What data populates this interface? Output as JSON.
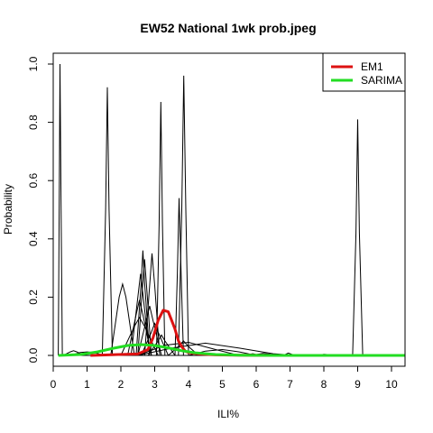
{
  "chart_data": {
    "type": "line",
    "title": "EW52 National 1wk prob.jpeg",
    "xlabel": "ILI%",
    "ylabel": "Probability",
    "xlim": [
      0,
      10.4
    ],
    "ylim": [
      0,
      1.0
    ],
    "x_ticks": [
      0,
      1,
      2,
      3,
      4,
      5,
      6,
      7,
      8,
      9,
      10
    ],
    "x_tick_labels": [
      "0",
      "1",
      "2",
      "3",
      "4",
      "5",
      "6",
      "7",
      "8",
      "9",
      "10"
    ],
    "y_ticks": [
      0,
      0.2,
      0.4,
      0.6,
      0.8,
      1.0
    ],
    "y_tick_labels": [
      "0.0",
      "0.2",
      "0.4",
      "0.6",
      "0.8",
      "1.0"
    ],
    "legend": {
      "position": "top-right",
      "entries": [
        {
          "name": "EM1",
          "color": "#dd1111"
        },
        {
          "name": "SARIMA",
          "color": "#22dd22"
        }
      ]
    },
    "highlight_series": [
      {
        "name": "EM1",
        "color": "#dd1111",
        "x": [
          1.1,
          2.5,
          2.8,
          2.95,
          3.1,
          3.25,
          3.4,
          3.5,
          3.6,
          3.7,
          3.8,
          3.9,
          4.0,
          4.3,
          4.8,
          5.5,
          6.5,
          10.4
        ],
        "y": [
          0.0,
          0.005,
          0.02,
          0.06,
          0.12,
          0.155,
          0.15,
          0.12,
          0.09,
          0.05,
          0.03,
          0.015,
          0.01,
          0.005,
          0.002,
          0.001,
          0.0,
          0.0
        ]
      },
      {
        "name": "SARIMA",
        "color": "#22dd22",
        "x": [
          0.15,
          0.8,
          1.3,
          1.8,
          2.2,
          2.6,
          3.0,
          3.4,
          3.8,
          4.2,
          4.8,
          5.5,
          6.5,
          10.4
        ],
        "y": [
          0.0,
          0.003,
          0.012,
          0.025,
          0.034,
          0.037,
          0.034,
          0.026,
          0.016,
          0.009,
          0.003,
          0.001,
          0.0,
          0.0
        ]
      }
    ],
    "series": [
      {
        "x": [
          0.15,
          0.18,
          0.2,
          0.23,
          0.27,
          0.5,
          10.4
        ],
        "y": [
          0.0,
          0.6,
          1.0,
          0.55,
          0.0,
          0.0,
          0.0
        ]
      },
      {
        "x": [
          1.45,
          1.55,
          1.6,
          1.65,
          1.75
        ],
        "y": [
          0.0,
          0.5,
          0.92,
          0.5,
          0.0
        ]
      },
      {
        "x": [
          3.05,
          3.13,
          3.18,
          3.23,
          3.3
        ],
        "y": [
          0.0,
          0.45,
          0.87,
          0.45,
          0.0
        ]
      },
      {
        "x": [
          3.7,
          3.8,
          3.86,
          3.92,
          4.0
        ],
        "y": [
          0.0,
          0.5,
          0.96,
          0.5,
          0.0
        ]
      },
      {
        "x": [
          3.6,
          3.67,
          3.72,
          3.78,
          3.85
        ],
        "y": [
          0.0,
          0.28,
          0.54,
          0.28,
          0.0
        ]
      },
      {
        "x": [
          8.85,
          8.95,
          9.0,
          9.05,
          9.15
        ],
        "y": [
          0.0,
          0.42,
          0.81,
          0.42,
          0.0
        ]
      },
      {
        "x": [
          1.7,
          1.95,
          2.05,
          2.15,
          2.4
        ],
        "y": [
          0.0,
          0.2,
          0.245,
          0.2,
          0.0
        ]
      },
      {
        "x": [
          2.45,
          2.6,
          2.65,
          2.7,
          2.85
        ],
        "y": [
          0.0,
          0.25,
          0.36,
          0.25,
          0.0
        ]
      },
      {
        "x": [
          2.5,
          2.63,
          2.7,
          2.77,
          2.9
        ],
        "y": [
          0.0,
          0.22,
          0.33,
          0.22,
          0.0
        ]
      },
      {
        "x": [
          2.7,
          2.85,
          2.92,
          3.0,
          3.15
        ],
        "y": [
          0.0,
          0.24,
          0.35,
          0.24,
          0.0
        ]
      },
      {
        "x": [
          2.3,
          2.5,
          2.58,
          2.66,
          2.85
        ],
        "y": [
          0.0,
          0.2,
          0.28,
          0.2,
          0.0
        ]
      },
      {
        "x": [
          2.2,
          2.45,
          2.55,
          2.65,
          2.9
        ],
        "y": [
          0.0,
          0.14,
          0.19,
          0.14,
          0.0
        ]
      },
      {
        "x": [
          2.5,
          2.75,
          2.85,
          2.95,
          3.2
        ],
        "y": [
          0.0,
          0.12,
          0.17,
          0.12,
          0.0
        ]
      },
      {
        "x": [
          2.0,
          2.4,
          2.55,
          2.7,
          3.1
        ],
        "y": [
          0.0,
          0.1,
          0.13,
          0.1,
          0.0
        ]
      },
      {
        "x": [
          2.6,
          2.9,
          3.0,
          3.1,
          3.4
        ],
        "y": [
          0.0,
          0.08,
          0.11,
          0.08,
          0.0
        ]
      },
      {
        "x": [
          2.8,
          3.1,
          3.2,
          3.3,
          3.6
        ],
        "y": [
          0.0,
          0.05,
          0.07,
          0.05,
          0.0
        ]
      },
      {
        "x": [
          0.3,
          0.5,
          0.6,
          0.7,
          0.9
        ],
        "y": [
          0.0,
          0.012,
          0.016,
          0.012,
          0.0
        ]
      },
      {
        "x": [
          0.5,
          0.8,
          1.0,
          1.2,
          1.5
        ],
        "y": [
          0.0,
          0.01,
          0.012,
          0.01,
          0.0
        ]
      },
      {
        "x": [
          2.5,
          3.5,
          4.5,
          5.5,
          6.5,
          7.2
        ],
        "y": [
          0.0,
          0.025,
          0.042,
          0.025,
          0.006,
          0.0
        ]
      },
      {
        "x": [
          2.5,
          3.3,
          4.0,
          4.8,
          5.5
        ],
        "y": [
          0.0,
          0.035,
          0.045,
          0.02,
          0.0
        ]
      },
      {
        "x": [
          3.4,
          3.7,
          3.85,
          4.0,
          4.3
        ],
        "y": [
          0.0,
          0.03,
          0.05,
          0.03,
          0.0
        ]
      },
      {
        "x": [
          4.0,
          4.5,
          5.0,
          5.5,
          6.0
        ],
        "y": [
          0.0,
          0.015,
          0.02,
          0.012,
          0.0
        ]
      },
      {
        "x": [
          5.6,
          5.9,
          6.0,
          6.2,
          6.5,
          6.8
        ],
        "y": [
          0.0,
          0.006,
          0.003,
          0.007,
          0.003,
          0.0
        ]
      },
      {
        "x": [
          6.8,
          6.95,
          7.05,
          7.2
        ],
        "y": [
          0.0,
          0.008,
          0.004,
          0.0
        ]
      },
      {
        "x": [
          7.8,
          8.0,
          8.1,
          8.3
        ],
        "y": [
          0.0,
          0.004,
          0.003,
          0.0
        ]
      }
    ]
  }
}
